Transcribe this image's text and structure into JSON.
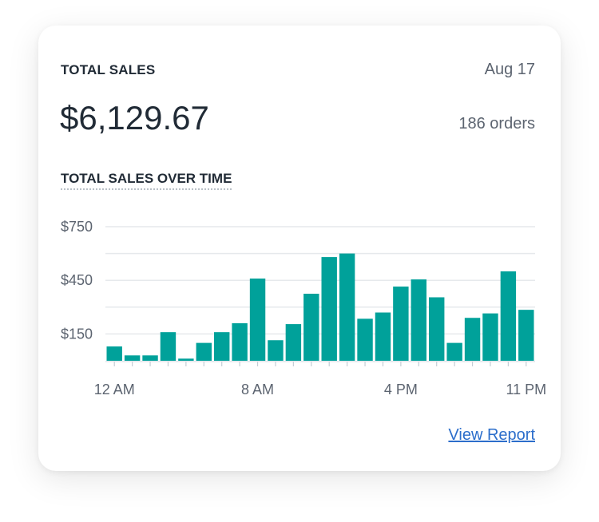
{
  "card": {
    "title": "TOTAL SALES",
    "date": "Aug 17",
    "amount": "$6,129.67",
    "orders": "186 orders",
    "subtitle": "TOTAL SALES OVER TIME",
    "view_report": "View Report"
  },
  "colors": {
    "bar": "#00a19a",
    "grid": "#e6e9ec",
    "link": "#2c6ecb"
  },
  "chart_data": {
    "type": "bar",
    "title": "TOTAL SALES OVER TIME",
    "ylim": [
      0,
      750
    ],
    "yticks": [
      {
        "value": 750,
        "label": "$750"
      },
      {
        "value": 450,
        "label": "$450"
      },
      {
        "value": 150,
        "label": "$150"
      }
    ],
    "grid_values": [
      750,
      600,
      450,
      300,
      150
    ],
    "grid": true,
    "xticks": [
      {
        "index": 0,
        "label": "12 AM"
      },
      {
        "index": 8,
        "label": "8 AM"
      },
      {
        "index": 16,
        "label": "4 PM"
      },
      {
        "index": 23,
        "label": "11 PM"
      }
    ],
    "categories": [
      "0",
      "1",
      "2",
      "3",
      "4",
      "5",
      "6",
      "7",
      "8",
      "9",
      "10",
      "11",
      "12",
      "13",
      "14",
      "15",
      "16",
      "17",
      "18",
      "19",
      "20",
      "21",
      "22",
      "23"
    ],
    "values": [
      80,
      30,
      30,
      160,
      12,
      100,
      160,
      210,
      460,
      115,
      205,
      375,
      580,
      600,
      235,
      270,
      415,
      455,
      355,
      100,
      240,
      265,
      500,
      285
    ]
  }
}
